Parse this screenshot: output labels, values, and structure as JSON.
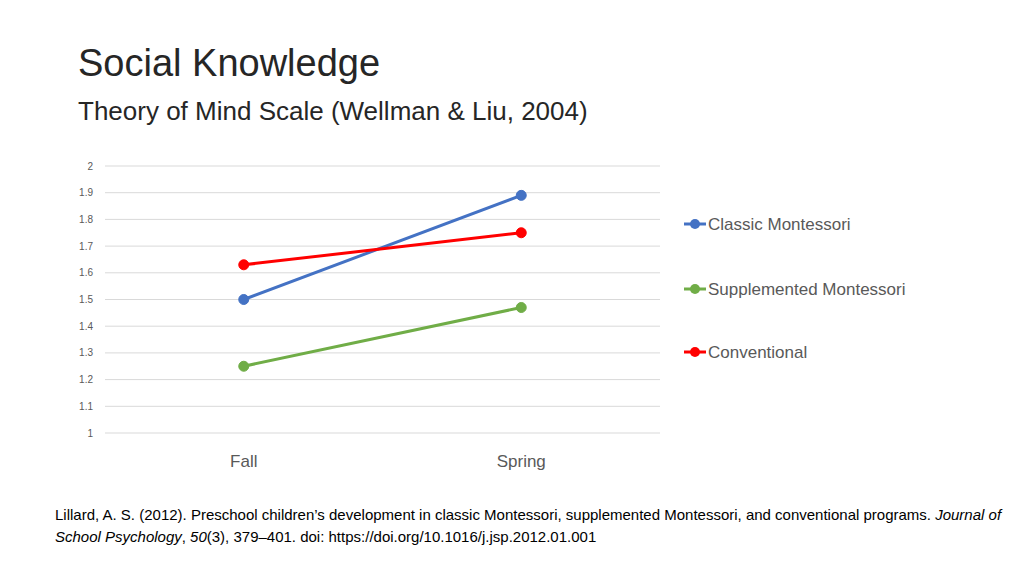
{
  "chart_data": {
    "type": "line",
    "title": "Social Knowledge",
    "subtitle": "Theory of Mind Scale (Wellman & Liu, 2004)",
    "source": [
      "Lillard, A. S. (2012). Preschool children’s development in classic Montessori, supplemented Montessori, and conventional programs. ",
      "Journal of School Psychology",
      ", ",
      "50",
      "(3), 379–401. doi: https://doi.org/10.1016/j.jsp.2012.01.001"
    ],
    "categories": [
      "Fall",
      "Spring"
    ],
    "series": [
      {
        "name": "Classic Montessori",
        "color": "#4472c4",
        "marker": "circle",
        "values": [
          1.5,
          1.89
        ]
      },
      {
        "name": "Supplemented Montessori",
        "color": "#70ad47",
        "marker": "circle",
        "values": [
          1.25,
          1.47
        ]
      },
      {
        "name": "Conventional",
        "color": "#ff0000",
        "marker": "circle",
        "values": [
          1.63,
          1.75
        ]
      }
    ],
    "ylim": [
      1,
      2
    ],
    "yticks": [
      1,
      1.1,
      1.2,
      1.3,
      1.4,
      1.5,
      1.6,
      1.7,
      1.8,
      1.9,
      2
    ],
    "grid": true,
    "legend": "right"
  }
}
